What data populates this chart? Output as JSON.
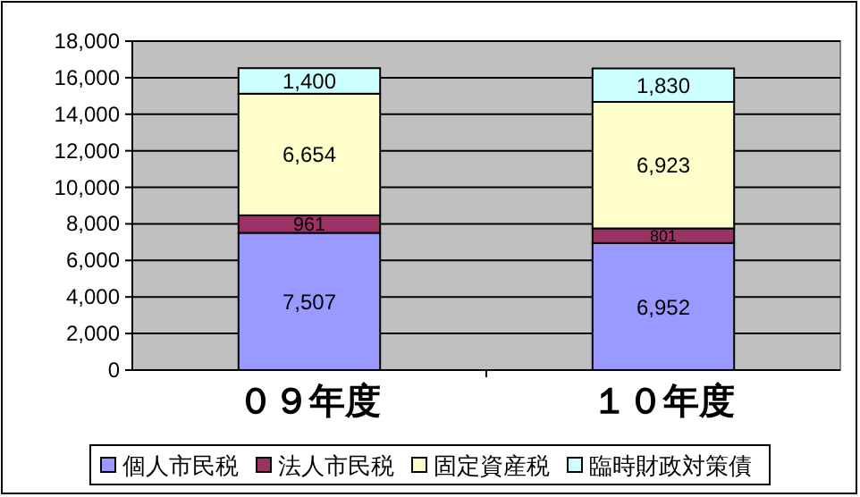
{
  "chart_data": {
    "type": "bar",
    "stacked": true,
    "categories": [
      "０９年度",
      "１０年度"
    ],
    "series": [
      {
        "name": "個人市民税",
        "color": "#9999ff",
        "values": [
          7507,
          6952
        ],
        "value_labels": [
          "7,507",
          "6,952"
        ]
      },
      {
        "name": "法人市民税",
        "color": "#993366",
        "values": [
          961,
          801
        ],
        "value_labels": [
          "961",
          "801"
        ]
      },
      {
        "name": "固定資産税",
        "color": "#ffffcc",
        "values": [
          6654,
          6923
        ],
        "value_labels": [
          "6,654",
          "6,923"
        ]
      },
      {
        "name": "臨時財政対策債",
        "color": "#ccffff",
        "values": [
          1400,
          1830
        ],
        "value_labels": [
          "1,400",
          "1,830"
        ]
      }
    ],
    "ylim": [
      0,
      18000
    ],
    "yticks": [
      0,
      {
        "value": 2000,
        "label": "2,000"
      },
      {
        "value": 4000,
        "label": "4,000"
      },
      {
        "value": 6000,
        "label": "6,000"
      },
      {
        "value": 8000,
        "label": "8,000"
      },
      {
        "value": 10000,
        "label": "10,000"
      },
      {
        "value": 12000,
        "label": "12,000"
      },
      {
        "value": 14000,
        "label": "14,000"
      },
      {
        "value": 16000,
        "label": "16,000"
      },
      {
        "value": 18000,
        "label": "18,000"
      }
    ],
    "grid": "y",
    "legend": "bottom"
  }
}
